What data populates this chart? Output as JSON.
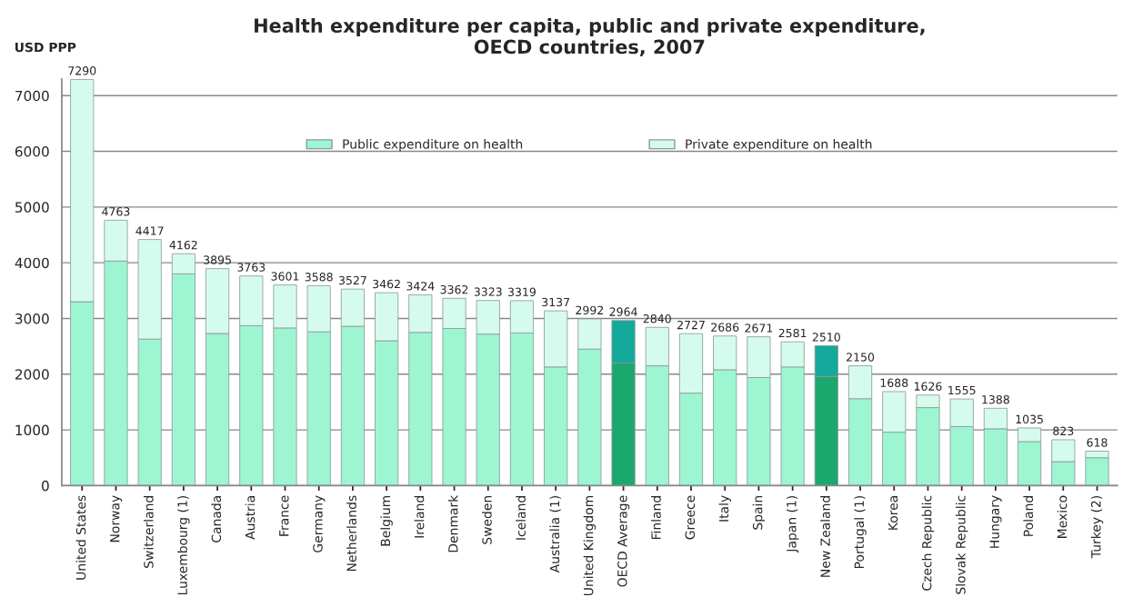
{
  "chart_data": {
    "type": "bar",
    "title": "Health expenditure per capita, public and private expenditure,\nOECD countries, 2007",
    "ylabel": "USD PPP",
    "categories": [
      "United States",
      "Norway",
      "Switzerland",
      "Luxembourg (1)",
      "Canada",
      "Austria",
      "France",
      "Germany",
      "Netherlands",
      "Belgium",
      "Ireland",
      "Denmark",
      "Sweden",
      "Iceland",
      "Australia (1)",
      "United Kingdom",
      "OECD Average",
      "Finland",
      "Greece",
      "Italy",
      "Spain",
      "Japan (1)",
      "New Zealand",
      "Portugal (1)",
      "Korea",
      "Czech Republic",
      "Slovak Republic",
      "Hungary",
      "Poland",
      "Mexico",
      "Turkey (2)"
    ],
    "stacked": true,
    "series": [
      {
        "name": "Public expenditure on health",
        "color": "#9ef5d2",
        "colors": [
          "#9ef5d2",
          "#9ef5d2",
          "#9ef5d2",
          "#9ef5d2",
          "#9ef5d2",
          "#9ef5d2",
          "#9ef5d2",
          "#9ef5d2",
          "#9ef5d2",
          "#9ef5d2",
          "#9ef5d2",
          "#9ef5d2",
          "#9ef5d2",
          "#9ef5d2",
          "#9ef5d2",
          "#9ef5d2",
          "#1aa86e",
          "#9ef5d2",
          "#9ef5d2",
          "#9ef5d2",
          "#9ef5d2",
          "#9ef5d2",
          "#1aa86e",
          "#9ef5d2",
          "#9ef5d2",
          "#9ef5d2",
          "#9ef5d2",
          "#9ef5d2",
          "#9ef5d2",
          "#9ef5d2",
          "#9ef5d2"
        ],
        "values": [
          3300,
          4030,
          2630,
          3800,
          2730,
          2870,
          2830,
          2760,
          2860,
          2600,
          2750,
          2820,
          2720,
          2740,
          2130,
          2450,
          2200,
          2150,
          1660,
          2080,
          1940,
          2130,
          1960,
          1560,
          960,
          1400,
          1060,
          1020,
          790,
          430,
          500
        ]
      },
      {
        "name": "Private expenditure on health",
        "color": "#d5fbef",
        "colors": [
          "#d5fbef",
          "#d5fbef",
          "#d5fbef",
          "#d5fbef",
          "#d5fbef",
          "#d5fbef",
          "#d5fbef",
          "#d5fbef",
          "#d5fbef",
          "#d5fbef",
          "#d5fbef",
          "#d5fbef",
          "#d5fbef",
          "#d5fbef",
          "#d5fbef",
          "#d5fbef",
          "#14a99a",
          "#d5fbef",
          "#d5fbef",
          "#d5fbef",
          "#d5fbef",
          "#d5fbef",
          "#14a99a",
          "#d5fbef",
          "#d5fbef",
          "#d5fbef",
          "#d5fbef",
          "#d5fbef",
          "#d5fbef",
          "#d5fbef",
          "#d5fbef"
        ],
        "values": [
          3990,
          733,
          1787,
          362,
          1165,
          893,
          771,
          828,
          667,
          862,
          674,
          542,
          603,
          579,
          1007,
          542,
          764,
          690,
          1067,
          606,
          731,
          451,
          550,
          590,
          728,
          226,
          495,
          368,
          245,
          393,
          118
        ]
      }
    ],
    "totals": [
      "7290",
      "4763",
      "4417",
      "4162",
      "3895",
      "3763",
      "3601",
      "3588",
      "3527",
      "3462",
      "3424",
      "3362",
      "3323",
      "3319",
      "3137",
      "2992",
      "2964",
      "2840",
      "2727",
      "2686",
      "2671",
      "2581",
      "2510",
      "2150",
      "1688",
      "1626",
      "1555",
      "1388",
      "1035",
      "823",
      "618"
    ],
    "ylim": [
      0,
      7300
    ],
    "yticks": [
      0,
      1000,
      2000,
      3000,
      4000,
      5000,
      6000,
      7000
    ],
    "grid": "y",
    "legend": "top"
  }
}
